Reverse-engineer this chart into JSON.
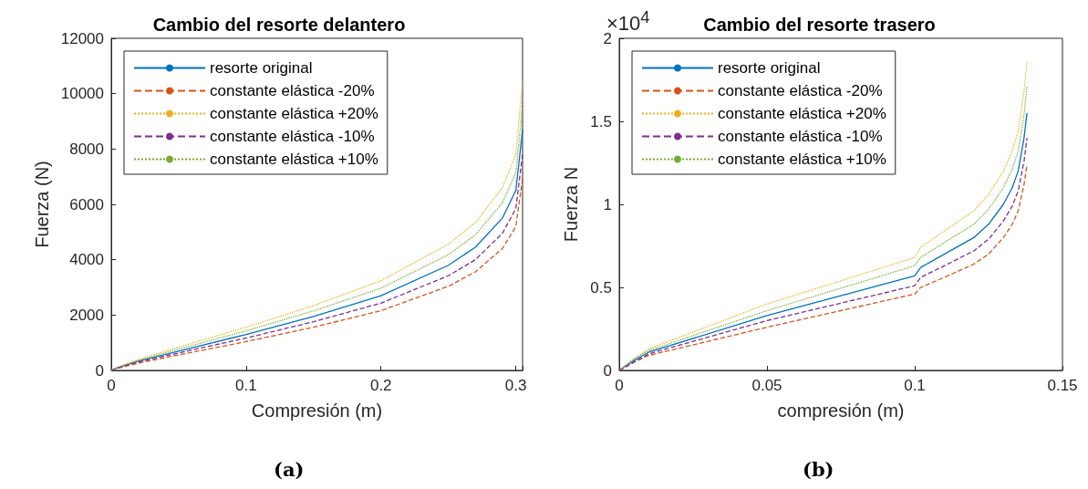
{
  "chart_data": [
    {
      "type": "line",
      "title": "Cambio del resorte delantero",
      "xlabel": "Compresión (m)",
      "ylabel": "Fuerza (N)",
      "xlim": [
        0,
        0.305
      ],
      "xticks": [
        0,
        0.1,
        0.2,
        0.3
      ],
      "ylim": [
        0,
        12000
      ],
      "yticks": [
        0,
        2000,
        4000,
        6000,
        8000,
        10000,
        12000
      ],
      "grid": false,
      "legend": "top left",
      "marker": "none",
      "annotations": [
        "(a)"
      ],
      "x": [
        0,
        0.005,
        0.02,
        0.05,
        0.1,
        0.15,
        0.2,
        0.25,
        0.27,
        0.29,
        0.3,
        0.303,
        0.305
      ],
      "series": [
        {
          "name": "resorte original",
          "color": "#0072bd",
          "line_style": "solid",
          "values": [
            0,
            100,
            330,
            700,
            1300,
            1950,
            2700,
            3800,
            4450,
            5500,
            6500,
            7800,
            8700
          ]
        },
        {
          "name": "constante elástica -20%",
          "color": "#d95319",
          "line_style": "dashed",
          "values": [
            0,
            80,
            260,
            560,
            1040,
            1560,
            2160,
            3040,
            3560,
            4400,
            5200,
            6240,
            6960
          ]
        },
        {
          "name": "constante elástica +20%",
          "color": "#edb120",
          "line_style": "dotted",
          "values": [
            0,
            120,
            400,
            840,
            1560,
            2340,
            3240,
            4560,
            5340,
            6600,
            7800,
            9360,
            10440
          ]
        },
        {
          "name": "constante elástica -10%",
          "color": "#7e2f8e",
          "line_style": "dashed",
          "values": [
            0,
            90,
            300,
            630,
            1170,
            1760,
            2430,
            3420,
            4000,
            4950,
            5850,
            7020,
            7830
          ]
        },
        {
          "name": "constante elástica +10%",
          "color": "#77ac30",
          "line_style": "dotted",
          "values": [
            0,
            110,
            360,
            770,
            1430,
            2150,
            2970,
            4180,
            4900,
            6050,
            7150,
            8580,
            9570
          ]
        }
      ]
    },
    {
      "type": "line",
      "title": "Cambio del resorte trasero",
      "xlabel": "compresión (m)",
      "ylabel": "Fuerza N",
      "xlim": [
        0,
        0.15
      ],
      "xticks": [
        0,
        0.05,
        0.1,
        0.15
      ],
      "ylim": [
        0,
        2
      ],
      "yticks": [
        0,
        0.5,
        1,
        1.5,
        2
      ],
      "grid": false,
      "legend": "top left",
      "marker": "none",
      "annotations": [
        "×10$^{4}$",
        "(b)"
      ],
      "x": [
        0,
        0.005,
        0.01,
        0.05,
        0.1,
        0.102,
        0.11,
        0.12,
        0.125,
        0.13,
        0.133,
        0.135,
        0.137,
        0.138
      ],
      "series": [
        {
          "name": "resorte original",
          "color": "#0072bd",
          "line_style": "solid",
          "values": [
            0,
            0.06,
            0.11,
            0.33,
            0.57,
            0.62,
            0.7,
            0.8,
            0.88,
            1.0,
            1.1,
            1.2,
            1.4,
            1.55
          ]
        },
        {
          "name": "constante elástica -20%",
          "color": "#d95319",
          "line_style": "dashed",
          "values": [
            0,
            0.05,
            0.09,
            0.26,
            0.46,
            0.5,
            0.56,
            0.64,
            0.7,
            0.8,
            0.88,
            0.96,
            1.12,
            1.24
          ]
        },
        {
          "name": "constante elástica +20%",
          "color": "#edb120",
          "line_style": "dotted",
          "values": [
            0,
            0.07,
            0.13,
            0.4,
            0.68,
            0.74,
            0.84,
            0.96,
            1.06,
            1.2,
            1.32,
            1.44,
            1.68,
            1.86
          ]
        },
        {
          "name": "constante elástica -10%",
          "color": "#7e2f8e",
          "line_style": "dashed",
          "values": [
            0,
            0.05,
            0.1,
            0.3,
            0.51,
            0.56,
            0.63,
            0.72,
            0.79,
            0.9,
            0.99,
            1.08,
            1.26,
            1.4
          ]
        },
        {
          "name": "constante elástica +10%",
          "color": "#77ac30",
          "line_style": "dotted",
          "values": [
            0,
            0.07,
            0.12,
            0.36,
            0.63,
            0.68,
            0.77,
            0.88,
            0.97,
            1.1,
            1.21,
            1.32,
            1.54,
            1.71
          ]
        }
      ]
    }
  ]
}
